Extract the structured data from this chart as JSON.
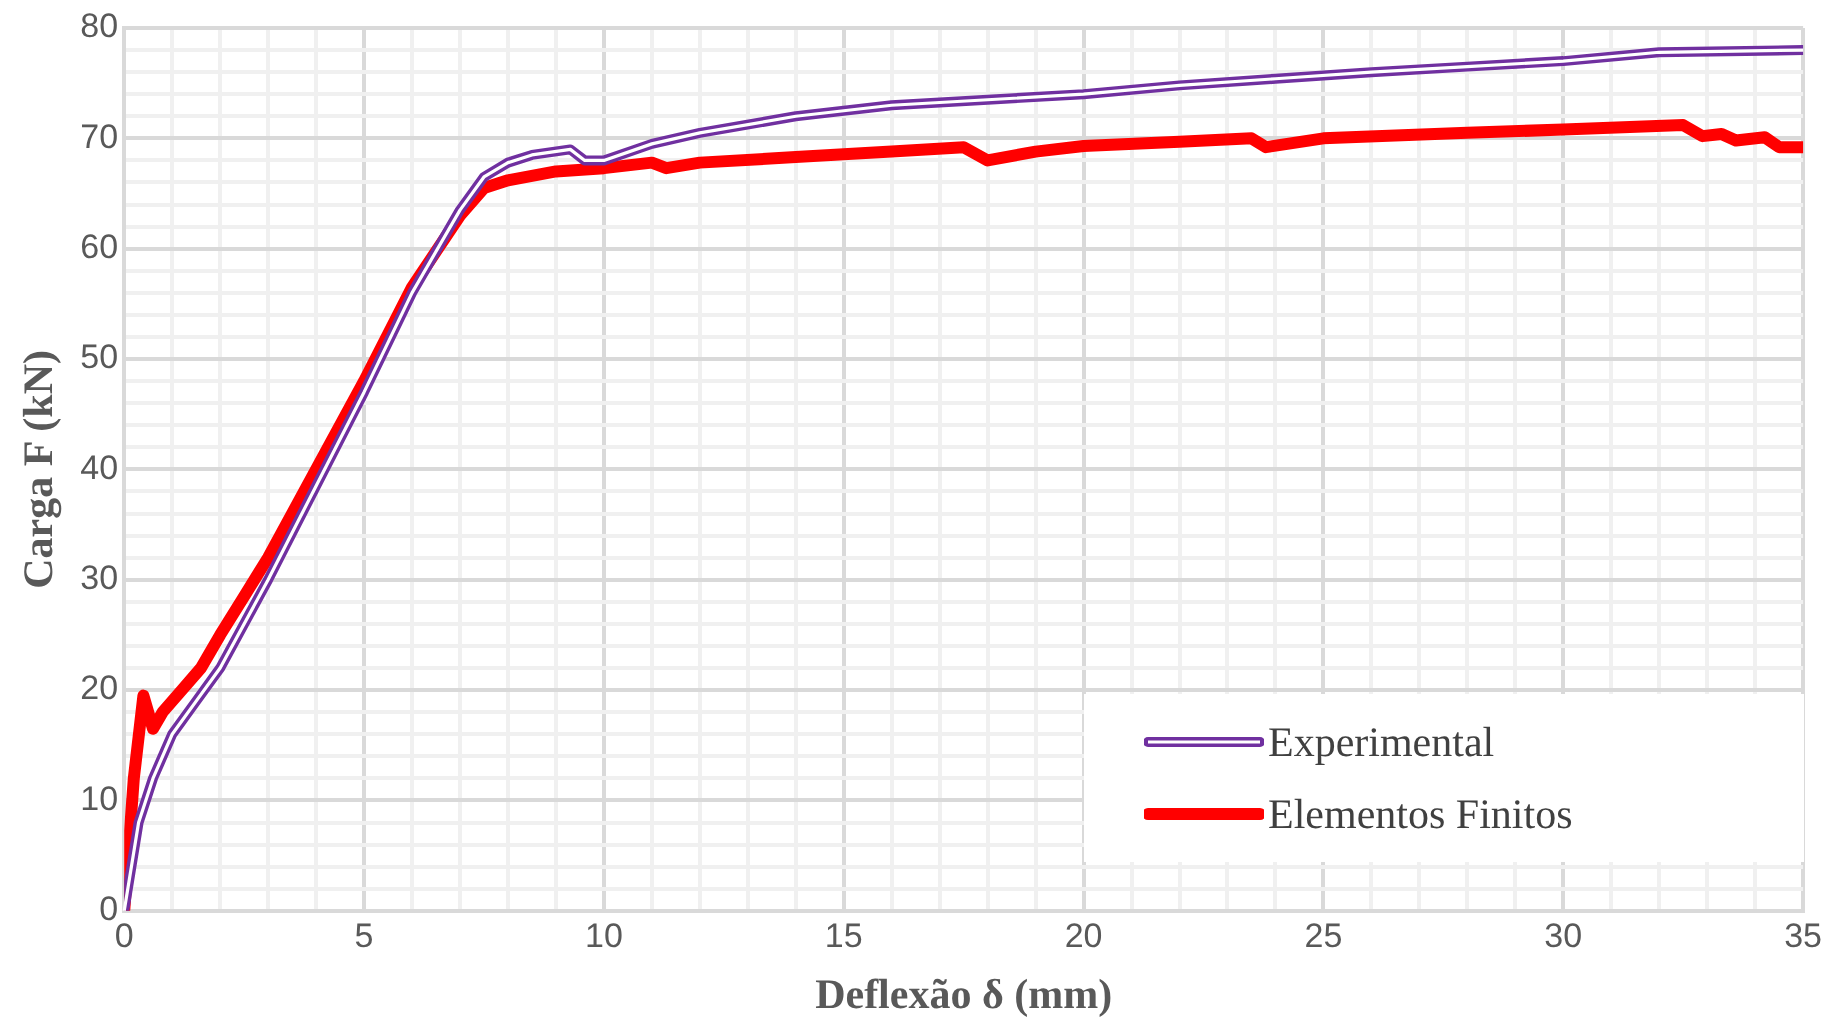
{
  "chart_data": {
    "type": "line",
    "xlabel": "Deflexão δ (mm)",
    "ylabel": "Carga F (kN)",
    "xlim": [
      0,
      35
    ],
    "ylim": [
      0,
      80
    ],
    "xticks": [
      0,
      {
        "value": 1,
        "label": null
      },
      {
        "value": 2,
        "label": null
      },
      {
        "value": 3,
        "label": null
      },
      {
        "value": 4,
        "label": null
      },
      5,
      {
        "value": 6,
        "label": null
      },
      {
        "value": 7,
        "label": null
      },
      {
        "value": 8,
        "label": null
      },
      {
        "value": 9,
        "label": null
      },
      10,
      {
        "value": 11,
        "label": null
      },
      {
        "value": 12,
        "label": null
      },
      {
        "value": 13,
        "label": null
      },
      {
        "value": 14,
        "label": null
      },
      15,
      {
        "value": 16,
        "label": null
      },
      {
        "value": 17,
        "label": null
      },
      {
        "value": 18,
        "label": null
      },
      {
        "value": 19,
        "label": null
      },
      20,
      {
        "value": 21,
        "label": null
      },
      {
        "value": 22,
        "label": null
      },
      {
        "value": 23,
        "label": null
      },
      {
        "value": 24,
        "label": null
      },
      25,
      {
        "value": 26,
        "label": null
      },
      {
        "value": 27,
        "label": null
      },
      {
        "value": 28,
        "label": null
      },
      {
        "value": 29,
        "label": null
      },
      30,
      {
        "value": 31,
        "label": null
      },
      {
        "value": 32,
        "label": null
      },
      {
        "value": 33,
        "label": null
      },
      {
        "value": 34,
        "label": null
      },
      35
    ],
    "yticks": [
      0,
      {
        "value": 2,
        "label": null
      },
      {
        "value": 4,
        "label": null
      },
      {
        "value": 6,
        "label": null
      },
      {
        "value": 8,
        "label": null
      },
      10,
      {
        "value": 12,
        "label": null
      },
      {
        "value": 14,
        "label": null
      },
      {
        "value": 16,
        "label": null
      },
      {
        "value": 18,
        "label": null
      },
      20,
      {
        "value": 22,
        "label": null
      },
      {
        "value": 24,
        "label": null
      },
      {
        "value": 26,
        "label": null
      },
      {
        "value": 28,
        "label": null
      },
      30,
      {
        "value": 32,
        "label": null
      },
      {
        "value": 34,
        "label": null
      },
      {
        "value": 36,
        "label": null
      },
      {
        "value": 38,
        "label": null
      },
      40,
      {
        "value": 42,
        "label": null
      },
      {
        "value": 44,
        "label": null
      },
      {
        "value": 46,
        "label": null
      },
      {
        "value": 48,
        "label": null
      },
      50,
      {
        "value": 52,
        "label": null
      },
      {
        "value": 54,
        "label": null
      },
      {
        "value": 56,
        "label": null
      },
      {
        "value": 58,
        "label": null
      },
      60,
      {
        "value": 62,
        "label": null
      },
      {
        "value": 64,
        "label": null
      },
      {
        "value": 66,
        "label": null
      },
      {
        "value": 68,
        "label": null
      },
      70,
      {
        "value": 72,
        "label": null
      },
      {
        "value": 74,
        "label": null
      },
      {
        "value": 76,
        "label": null
      },
      {
        "value": 78,
        "label": null
      },
      80
    ],
    "grid": true,
    "legend": "bottom right",
    "marker": "none",
    "series": [
      {
        "name": "Experimental",
        "color": "#7030a0",
        "x": [
          0,
          0.3,
          0.6,
          1,
          1.5,
          2,
          3,
          4,
          5,
          6,
          7,
          7.5,
          8,
          8.5,
          9.3,
          9.6,
          10,
          11,
          12,
          14,
          16,
          18,
          20,
          22,
          24,
          26,
          28,
          30,
          32,
          35
        ],
        "values": [
          0,
          8,
          12,
          16,
          19,
          22,
          30,
          38.5,
          47,
          56,
          63.5,
          66.5,
          67.8,
          68.5,
          69,
          68,
          68,
          69.5,
          70.5,
          72,
          73,
          73.5,
          74,
          74.8,
          75.4,
          76,
          76.5,
          77,
          77.8,
          78
        ]
      },
      {
        "name": "Elementos Finitos",
        "color": "#ff0000",
        "x": [
          0,
          0.2,
          0.4,
          0.6,
          0.8,
          1.2,
          1.6,
          2,
          2.5,
          3,
          4,
          5,
          6,
          7,
          7.5,
          8,
          9,
          10,
          11,
          11.3,
          12,
          14,
          16,
          17.5,
          18,
          19,
          20,
          22,
          23.5,
          23.8,
          25,
          28,
          30,
          32.5,
          32.9,
          33.3,
          33.6,
          34.2,
          34.5,
          35
        ],
        "values": [
          0,
          12,
          19.5,
          16.5,
          18,
          20,
          22,
          25,
          28.5,
          32,
          40,
          48,
          56.5,
          63,
          65.5,
          66.2,
          67,
          67.3,
          67.8,
          67.3,
          67.8,
          68.3,
          68.8,
          69.2,
          68,
          68.8,
          69.3,
          69.7,
          70,
          69.2,
          70,
          70.5,
          70.8,
          71.2,
          70.2,
          70.4,
          69.8,
          70.1,
          69.2,
          69.2
        ]
      }
    ]
  }
}
